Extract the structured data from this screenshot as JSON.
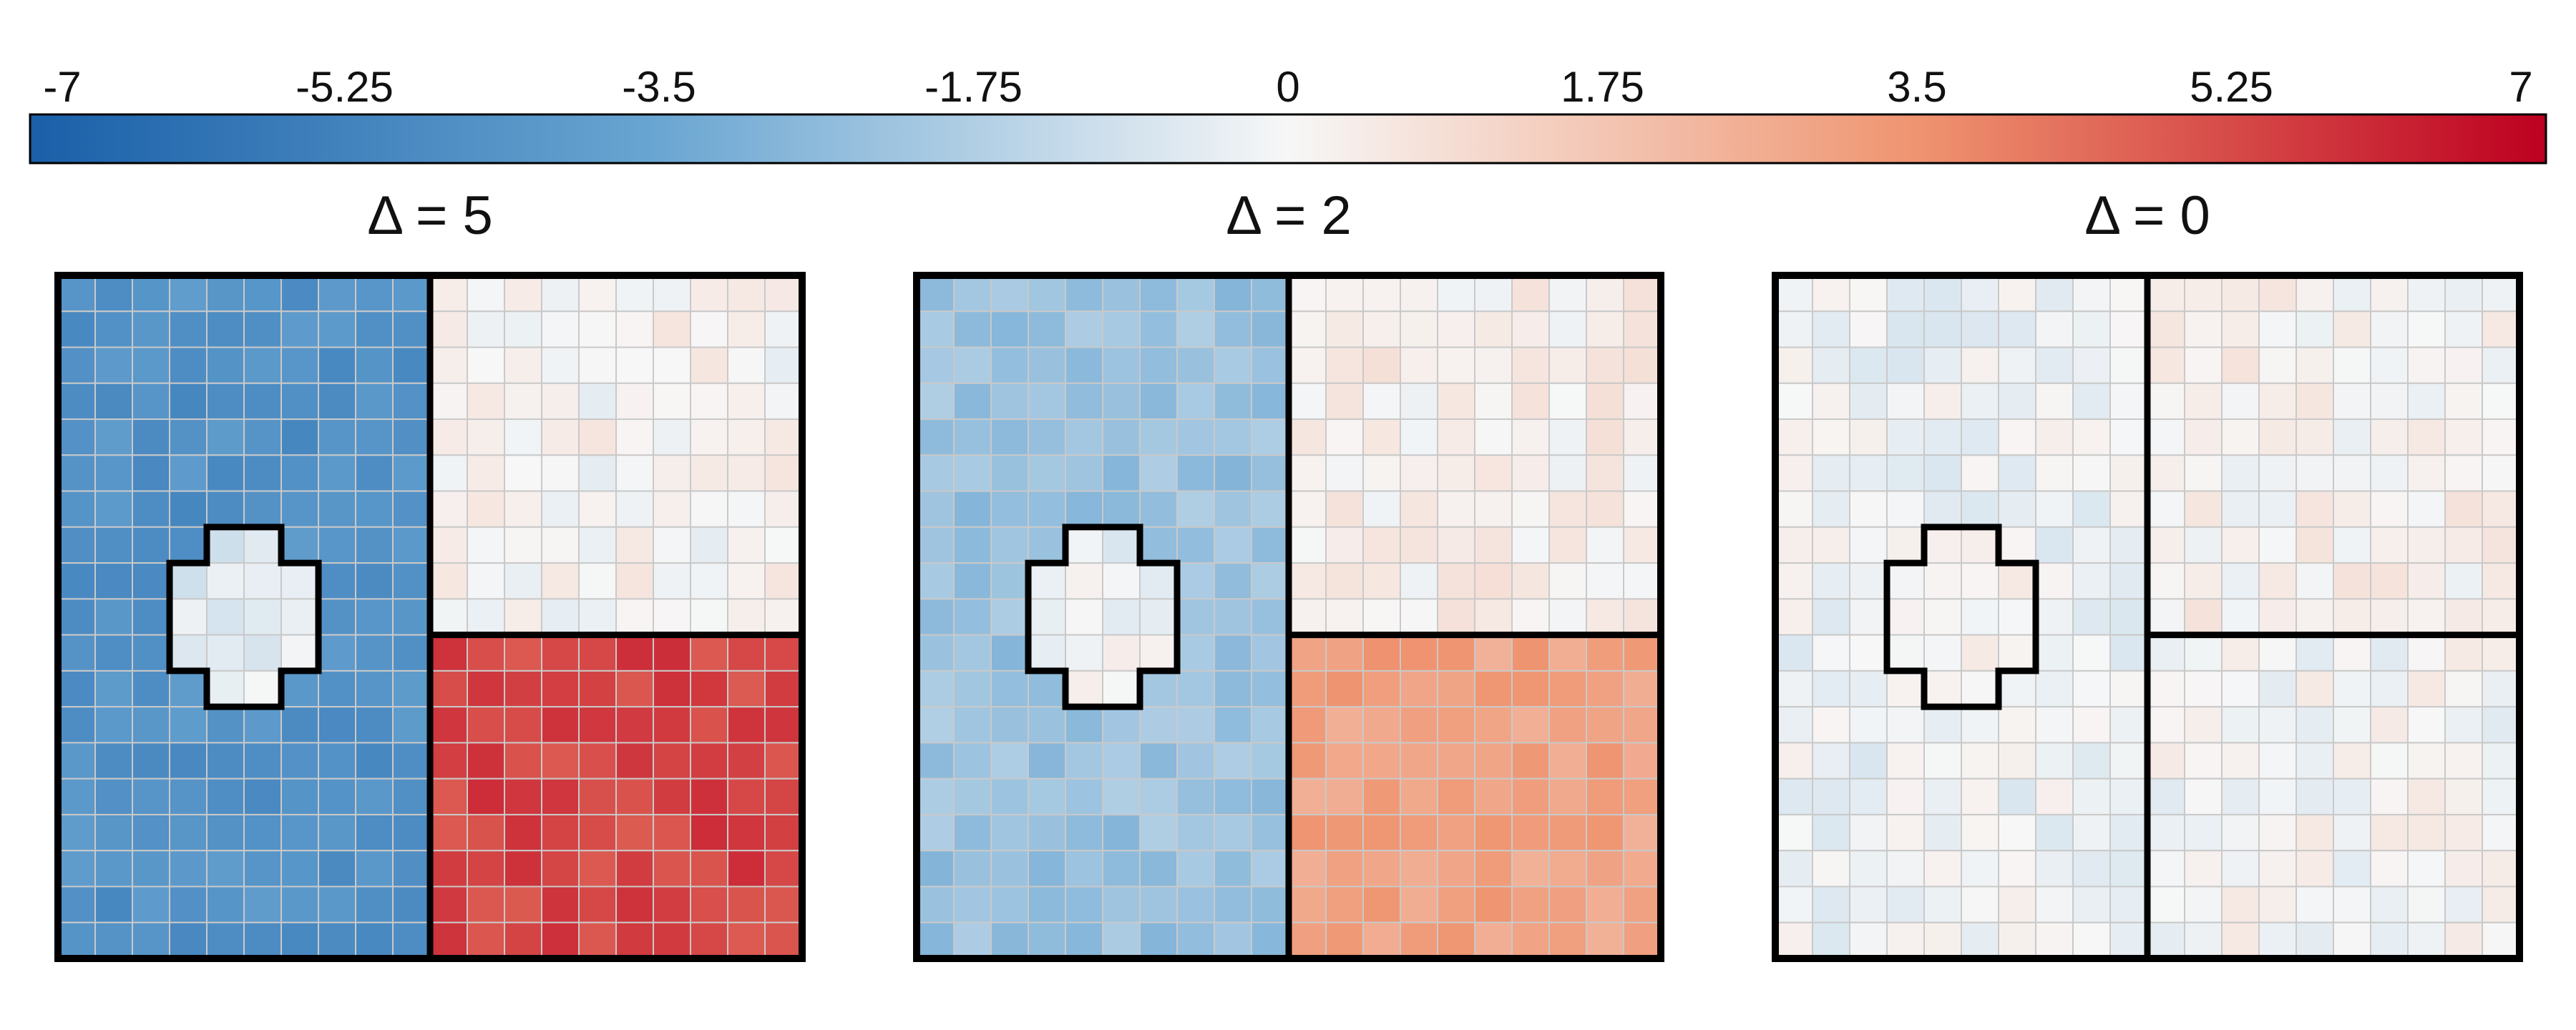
{
  "chart_data": {
    "type": "heatmap",
    "colorbar": {
      "min": -7,
      "max": 7,
      "ticks": [
        "-7",
        "-5.25",
        "-3.5",
        "-1.75",
        "0",
        "1.75",
        "3.5",
        "5.25",
        "7"
      ],
      "colors": {
        "low": "#1f5fa6",
        "mid": "#f7f7f7",
        "high": "#c00a25"
      },
      "orientation": "horizontal",
      "position": "top"
    },
    "grid": {
      "rows": 19,
      "cols": 20
    },
    "panels": [
      {
        "title": "Δ = 5",
        "left_mean": -4.5,
        "top_right_mean": 0.1,
        "bottom_right_mean": 5.4,
        "plus_mean": -0.6
      },
      {
        "title": "Δ = 2",
        "left_mean": -2.3,
        "top_right_mean": 0.3,
        "bottom_right_mean": 3.0,
        "plus_mean": -0.2
      },
      {
        "title": "Δ = 0",
        "left_mean": -0.2,
        "top_right_mean": 0.2,
        "bottom_right_mean": 0.0,
        "plus_mean": 0.0
      }
    ]
  }
}
